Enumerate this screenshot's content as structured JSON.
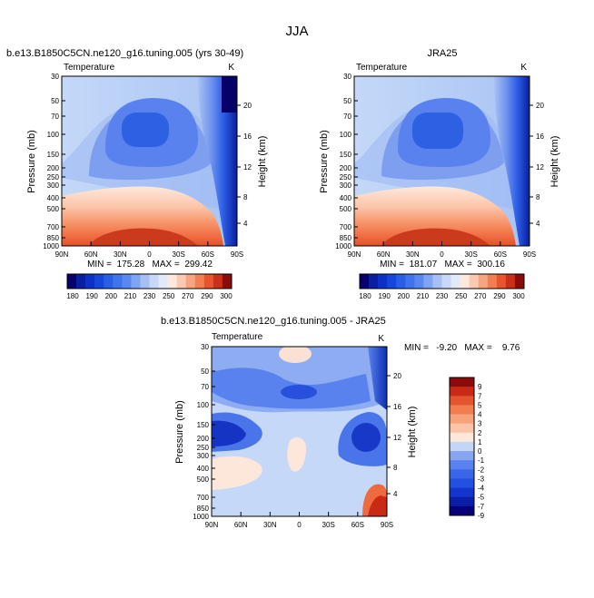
{
  "page": {
    "title": "JJA"
  },
  "chart_data": [
    {
      "type": "heatmap",
      "id": "model",
      "header": "b.e13.B1850C5CN.ne120_g16.tuning.005 (yrs 30-49)",
      "subtitle": "Temperature",
      "units": "K",
      "xlabel": "",
      "ylabel": "Pressure (mb)",
      "y2label": "Height (km)",
      "x_ticks": [
        "90N",
        "60N",
        "30N",
        "0",
        "30S",
        "60S",
        "90S"
      ],
      "y_ticks": [
        "30",
        "50",
        "70",
        "100",
        "150",
        "200",
        "250",
        "300",
        "400",
        "500",
        "700",
        "850",
        "1000"
      ],
      "y2_ticks": [
        "20",
        "16",
        "12",
        "8",
        "4"
      ],
      "stats": "MIN =  175.28   MAX =  299.42",
      "colorbar": {
        "orientation": "horizontal",
        "labels": [
          "180",
          "190",
          "200",
          "210",
          "230",
          "250",
          "270",
          "290",
          "300"
        ],
        "levels": [
          180,
          185,
          190,
          195,
          200,
          205,
          210,
          220,
          230,
          240,
          250,
          260,
          270,
          280,
          290,
          295,
          300
        ],
        "colors": [
          "#08006e",
          "#0a1ea0",
          "#0d30c8",
          "#1646dc",
          "#2a5ee6",
          "#3e74ec",
          "#5888f0",
          "#7ea4f4",
          "#a6c0f6",
          "#c8d8f8",
          "#e2eafa",
          "#fde8dc",
          "#fbc8b0",
          "#f8a47e",
          "#f47e52",
          "#e8542e",
          "#c8301a",
          "#8c0a0a"
        ]
      }
    },
    {
      "type": "heatmap",
      "id": "obs",
      "header": "JRA25",
      "subtitle": "Temperature",
      "units": "K",
      "xlabel": "",
      "ylabel": "Pressure (mb)",
      "y2label": "Height (km)",
      "x_ticks": [
        "90N",
        "60N",
        "30N",
        "0",
        "30S",
        "60S",
        "90S"
      ],
      "y_ticks": [
        "30",
        "50",
        "70",
        "100",
        "150",
        "200",
        "250",
        "300",
        "400",
        "500",
        "700",
        "850",
        "1000"
      ],
      "y2_ticks": [
        "20",
        "16",
        "12",
        "8",
        "4"
      ],
      "stats": "MIN =  181.07   MAX =  300.16",
      "colorbar": {
        "orientation": "horizontal",
        "labels": [
          "180",
          "190",
          "200",
          "210",
          "230",
          "250",
          "270",
          "290",
          "300"
        ],
        "levels": [
          180,
          185,
          190,
          195,
          200,
          205,
          210,
          220,
          230,
          240,
          250,
          260,
          270,
          280,
          290,
          295,
          300
        ],
        "colors": [
          "#08006e",
          "#0a1ea0",
          "#0d30c8",
          "#1646dc",
          "#2a5ee6",
          "#3e74ec",
          "#5888f0",
          "#7ea4f4",
          "#a6c0f6",
          "#c8d8f8",
          "#e2eafa",
          "#fde8dc",
          "#fbc8b0",
          "#f8a47e",
          "#f47e52",
          "#e8542e",
          "#c8301a",
          "#8c0a0a"
        ]
      }
    },
    {
      "type": "heatmap",
      "id": "diff",
      "header": "b.e13.B1850C5CN.ne120_g16.tuning.005 - JRA25",
      "subtitle": "Temperature",
      "units": "K",
      "xlabel": "",
      "ylabel": "Pressure (mb)",
      "y2label": "Height (km)",
      "x_ticks": [
        "90N",
        "60N",
        "30N",
        "0",
        "30S",
        "60S",
        "90S"
      ],
      "y_ticks": [
        "30",
        "50",
        "70",
        "100",
        "150",
        "200",
        "250",
        "300",
        "400",
        "500",
        "700",
        "850",
        "1000"
      ],
      "y2_ticks": [
        "20",
        "16",
        "12",
        "8",
        "4"
      ],
      "stats": "MIN =   -9.20   MAX =    9.76",
      "colorbar": {
        "orientation": "vertical",
        "labels": [
          "9",
          "7",
          "5",
          "4",
          "3",
          "2",
          "1",
          "0",
          "-1",
          "-2",
          "-3",
          "-4",
          "-5",
          "-7",
          "-9"
        ],
        "levels": [
          -9,
          -7,
          -5,
          -4,
          -3,
          -2,
          -1,
          0,
          1,
          2,
          3,
          4,
          5,
          7,
          9
        ],
        "colors": [
          "#06007a",
          "#0a1ea8",
          "#1236cc",
          "#2250e0",
          "#3a66e8",
          "#5a82ee",
          "#86a6f2",
          "#c4d6f8",
          "#fde6da",
          "#fbc6a8",
          "#f8a47a",
          "#f27e50",
          "#e4542e",
          "#c82a16",
          "#8c0a0a"
        ]
      }
    }
  ]
}
